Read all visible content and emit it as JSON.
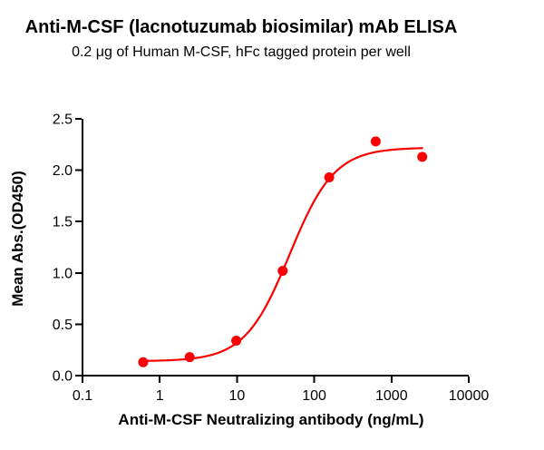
{
  "chart_data": {
    "type": "scatter",
    "title": "Anti-M-CSF (lacnotuzumab biosimilar) mAb ELISA",
    "subtitle": "0.2 μg of Human M-CSF, hFc tagged protein per well",
    "xlabel": "Anti-M-CSF Neutralizing antibody (ng/mL)",
    "ylabel": "Mean Abs.(OD450)",
    "x_scale": "log",
    "xlim": [
      0.1,
      10000
    ],
    "ylim": [
      0,
      2.5
    ],
    "x_ticks": [
      0.1,
      1,
      10,
      100,
      1000,
      10000
    ],
    "x_tick_labels": [
      "0.1",
      "1",
      "10",
      "100",
      "1000",
      "10000"
    ],
    "y_ticks": [
      0,
      0.5,
      1,
      1.5,
      2,
      2.5
    ],
    "y_tick_labels": [
      "0.0",
      "0.5",
      "1.0",
      "1.5",
      "2.0",
      "2.5"
    ],
    "grid": false,
    "legend": false,
    "series": [
      {
        "name": "Anti-M-CSF neutralizing antibody",
        "marker": "circle",
        "color": "#fa0000",
        "x": [
          0.61,
          2.44,
          9.77,
          39.06,
          156.25,
          625,
          2500
        ],
        "y": [
          0.13,
          0.18,
          0.34,
          1.02,
          1.93,
          2.28,
          2.13
        ]
      }
    ],
    "fit_curve": {
      "model": "4PL sigmoidal dose-response",
      "bottom": 0.14,
      "top": 2.22,
      "ec50": 48,
      "hill_slope": 1.5,
      "x_start": 0.61,
      "x_end": 2500,
      "color": "#fa0000"
    },
    "colors": {
      "axis": "#000000",
      "text": "#000000",
      "series_red": "#fa0000",
      "background": "#ffffff"
    }
  }
}
